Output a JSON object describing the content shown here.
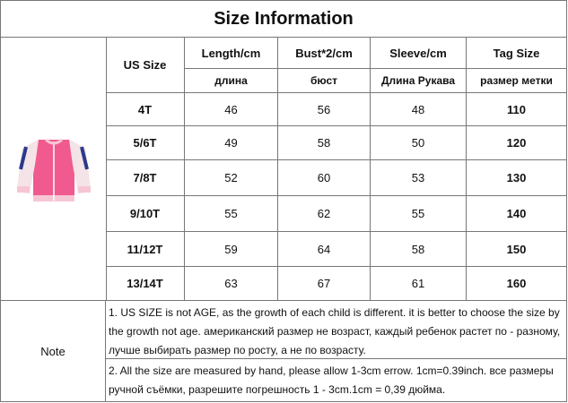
{
  "title": "Size Information",
  "table": {
    "header": [
      "US Size",
      "Length/cm",
      "Bust*2/cm",
      "Sleeve/cm",
      "Tag Size"
    ],
    "subheader": [
      "длина",
      "бюст",
      "Длина Рукава",
      "размер метки"
    ],
    "rows": [
      [
        "4T",
        46,
        56,
        48,
        110
      ],
      [
        "5/6T",
        49,
        58,
        50,
        120
      ],
      [
        "7/8T",
        52,
        60,
        53,
        130
      ],
      [
        "9/10T",
        55,
        62,
        55,
        140
      ],
      [
        "11/12T",
        59,
        64,
        58,
        150
      ],
      [
        "13/14T",
        63,
        67,
        61,
        160
      ]
    ]
  },
  "notes": {
    "label": "Note",
    "items": [
      "1. US SIZE is not AGE, as the growth of each child is different. it is better to choose the size by the growth not age.   американский размер не возраст, каждый ребенок растет по - разному, лучше выбирать размер по росту, а не по возрасту.",
      "2. All the size are measured by hand, please allow 1-3cm errow. 1cm=0.39inch.  все размеры ручной съёмки, разрешите погрешность 1 - 3cm.1cm = 0,39 дюйма."
    ]
  }
}
